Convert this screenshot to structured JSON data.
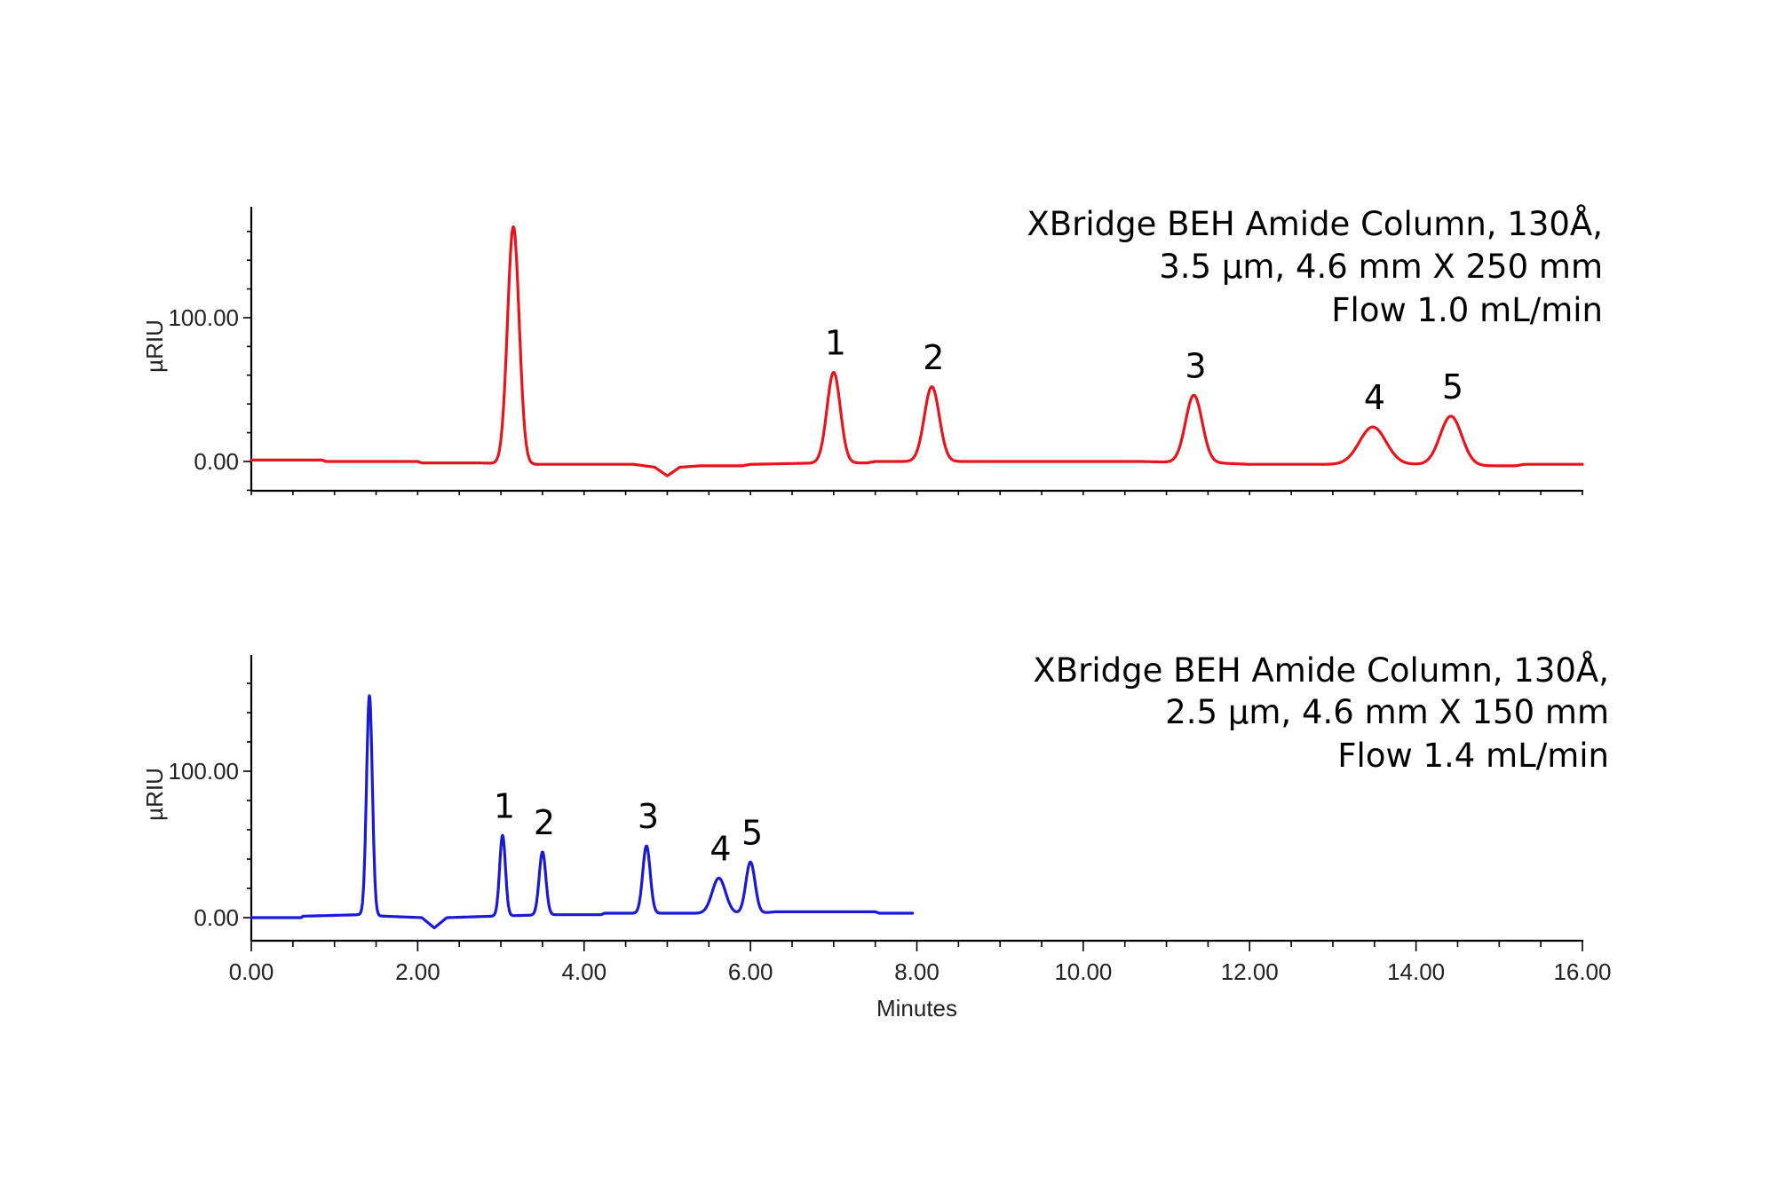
{
  "chart_data": [
    {
      "type": "line",
      "xlabel": "",
      "ylabel": "µRIU",
      "xlim": [
        0,
        16
      ],
      "yticks": [
        {
          "value": 0,
          "label": "0.00"
        },
        {
          "value": 100,
          "label": "100.00"
        }
      ],
      "color": "#e8141b",
      "annotation": [
        "XBridge BEH Amide Column, 130Å,",
        "3.5 µm, 4.6 mm X 250 mm",
        "Flow 1.0 mL/min"
      ],
      "baseline": [
        [
          0,
          1
        ],
        [
          0.85,
          1
        ],
        [
          0.9,
          0
        ],
        [
          2.0,
          0
        ],
        [
          2.05,
          -1
        ],
        [
          2.75,
          -1
        ],
        [
          3.3,
          -2
        ],
        [
          4.6,
          -2
        ],
        [
          4.85,
          -4
        ],
        [
          5.0,
          -10
        ],
        [
          5.15,
          -4
        ],
        [
          5.4,
          -3
        ],
        [
          5.9,
          -3
        ],
        [
          6.0,
          -2
        ],
        [
          6.85,
          -1
        ],
        [
          7.4,
          -1
        ],
        [
          7.5,
          0
        ],
        [
          10.7,
          0
        ],
        [
          11.4,
          -1
        ],
        [
          11.6,
          -1
        ],
        [
          12.0,
          -2
        ],
        [
          14.0,
          -2
        ],
        [
          14.85,
          -3
        ],
        [
          15.2,
          -3
        ],
        [
          15.3,
          -2
        ],
        [
          16.0,
          -2
        ]
      ],
      "peaks": [
        {
          "x": 3.15,
          "height": 165,
          "width": 0.07,
          "label": ""
        },
        {
          "x": 7.0,
          "height": 63,
          "width": 0.08,
          "label": "1"
        },
        {
          "x": 8.18,
          "height": 52,
          "width": 0.09,
          "label": "2"
        },
        {
          "x": 11.33,
          "height": 47,
          "width": 0.1,
          "label": "3"
        },
        {
          "x": 13.48,
          "height": 26,
          "width": 0.16,
          "label": "4"
        },
        {
          "x": 14.42,
          "height": 34,
          "width": 0.13,
          "label": "5"
        }
      ],
      "series_end_x": 16.0
    },
    {
      "type": "line",
      "xlabel": "Minutes",
      "ylabel": "µRIU",
      "xlim": [
        0,
        16
      ],
      "yticks": [
        {
          "value": 0,
          "label": "0.00"
        },
        {
          "value": 100,
          "label": "100.00"
        }
      ],
      "xticks": [
        {
          "value": 0,
          "label": "0.00"
        },
        {
          "value": 2,
          "label": "2.00"
        },
        {
          "value": 4,
          "label": "4.00"
        },
        {
          "value": 6,
          "label": "6.00"
        },
        {
          "value": 8,
          "label": "8.00"
        },
        {
          "value": 10,
          "label": "10.00"
        },
        {
          "value": 12,
          "label": "12.00"
        },
        {
          "value": 14,
          "label": "14.00"
        },
        {
          "value": 16,
          "label": "16.00"
        }
      ],
      "color": "#1a1ad6",
      "annotation": [
        "XBridge BEH Amide Column, 130Å,",
        "2.5 µm, 4.6 mm X 150 mm",
        "Flow 1.4 mL/min"
      ],
      "baseline": [
        [
          0,
          0
        ],
        [
          0.6,
          0
        ],
        [
          0.62,
          1
        ],
        [
          1.3,
          2
        ],
        [
          1.6,
          1
        ],
        [
          2.05,
          0
        ],
        [
          2.2,
          -7
        ],
        [
          2.35,
          0
        ],
        [
          2.9,
          1
        ],
        [
          3.6,
          2
        ],
        [
          4.2,
          2
        ],
        [
          4.25,
          3
        ],
        [
          5.3,
          3
        ],
        [
          6.1,
          3
        ],
        [
          6.3,
          4
        ],
        [
          7.5,
          4
        ],
        [
          7.55,
          3
        ],
        [
          7.95,
          3
        ]
      ],
      "peaks": [
        {
          "x": 1.42,
          "height": 150,
          "width": 0.035,
          "label": ""
        },
        {
          "x": 3.02,
          "height": 55,
          "width": 0.035,
          "label": "1"
        },
        {
          "x": 3.5,
          "height": 43,
          "width": 0.04,
          "label": "2"
        },
        {
          "x": 4.75,
          "height": 46,
          "width": 0.045,
          "label": "3"
        },
        {
          "x": 5.62,
          "height": 24,
          "width": 0.08,
          "label": "4"
        },
        {
          "x": 6.0,
          "height": 35,
          "width": 0.055,
          "label": "5"
        }
      ],
      "series_end_x": 7.95
    }
  ]
}
